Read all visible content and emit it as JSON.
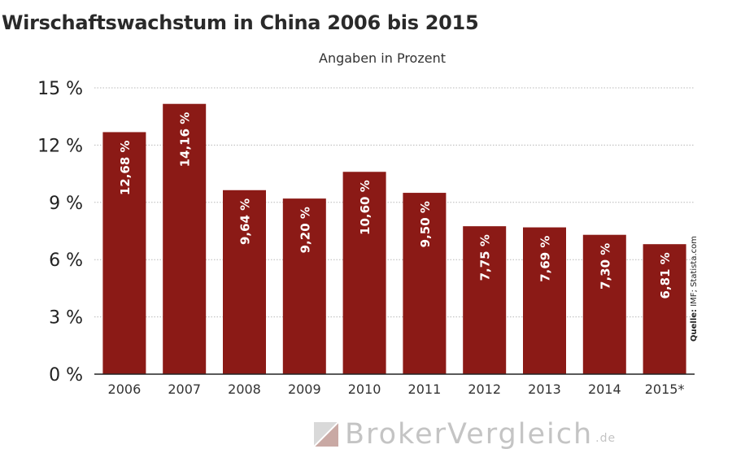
{
  "chart_data": {
    "type": "bar",
    "title": "Wirschaftswachstum in China 2006 bis 2015",
    "subtitle": "Angaben in Prozent",
    "categories": [
      "2006",
      "2007",
      "2008",
      "2009",
      "2010",
      "2011",
      "2012",
      "2013",
      "2014",
      "2015*"
    ],
    "values": [
      12.68,
      14.16,
      9.64,
      9.2,
      10.6,
      9.5,
      7.75,
      7.69,
      7.3,
      6.81
    ],
    "data_labels": [
      "12,68 %",
      "14,16 %",
      "9,64 %",
      "9,20 %",
      "10,60 %",
      "9,50 %",
      "7,75 %",
      "7,69 %",
      "7,30 %",
      "6,81 %"
    ],
    "y_ticks": [
      0,
      3,
      6,
      9,
      12,
      15
    ],
    "y_tick_labels": [
      "0 %",
      "3 %",
      "6 %",
      "9 %",
      "12 %",
      "15 %"
    ],
    "ylim": [
      0,
      15
    ],
    "grid": true,
    "bar_color": "#8b1a16"
  },
  "source": {
    "label": "Quelle:",
    "text": "IMF; Statista.com"
  },
  "brand": {
    "name": "BrokerVergleich",
    "tld": ".de"
  }
}
